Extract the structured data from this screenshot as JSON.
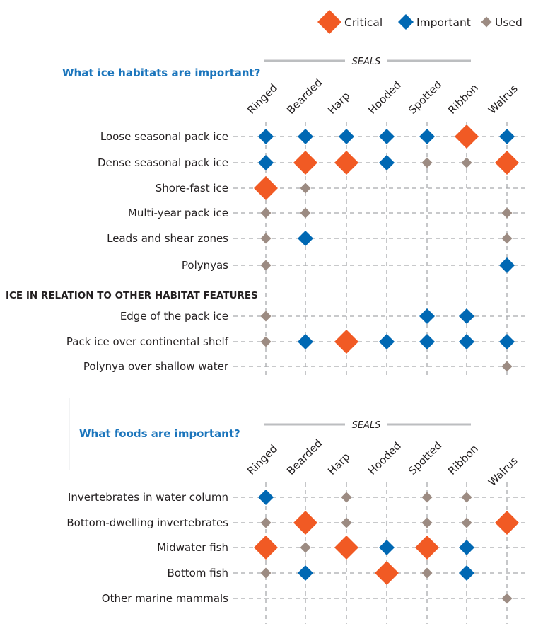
{
  "chart_data": {
    "type": "matrix",
    "colors": {
      "Critical": "#f15a24",
      "Important": "#0068b3",
      "Used": "#9c8b82",
      "heading": "#1b75bc"
    },
    "legend": {
      "placement": "top-right",
      "entries": [
        "Critical",
        "Important",
        "Used"
      ]
    },
    "codes": {
      "C": "Critical",
      "I": "Important",
      "U": "Used",
      "": "none"
    },
    "panels": [
      {
        "heading": "What ice habitats are important?",
        "group_label": "SEALS",
        "columns": [
          "Ringed",
          "Bearded",
          "Harp",
          "Hooded",
          "Spotted",
          "Ribbon",
          "Walrus"
        ],
        "sections": [
          {
            "title": "",
            "rows": [
              {
                "label": "Loose seasonal pack ice",
                "values": [
                  "I",
                  "I",
                  "I",
                  "I",
                  "I",
                  "C",
                  "I"
                ]
              },
              {
                "label": "Dense seasonal pack ice",
                "values": [
                  "I",
                  "C",
                  "C",
                  "I",
                  "U",
                  "U",
                  "C"
                ]
              },
              {
                "label": "Shore-fast ice",
                "values": [
                  "C",
                  "U",
                  "",
                  "",
                  "",
                  "",
                  ""
                ]
              },
              {
                "label": "Multi-year pack ice",
                "values": [
                  "U",
                  "U",
                  "",
                  "",
                  "",
                  "",
                  "U"
                ]
              },
              {
                "label": "Leads and shear zones",
                "values": [
                  "U",
                  "I",
                  "",
                  "",
                  "",
                  "",
                  "U"
                ]
              },
              {
                "label": "Polynyas",
                "values": [
                  "U",
                  "",
                  "",
                  "",
                  "",
                  "",
                  "I"
                ]
              }
            ]
          },
          {
            "title": "ICE IN RELATION TO OTHER HABITAT FEATURES",
            "rows": [
              {
                "label": "Edge of the pack ice",
                "values": [
                  "U",
                  "",
                  "",
                  "",
                  "I",
                  "I",
                  ""
                ]
              },
              {
                "label": "Pack ice over continental shelf",
                "values": [
                  "U",
                  "I",
                  "C",
                  "I",
                  "I",
                  "I",
                  "I"
                ]
              },
              {
                "label": "Polynya over shallow water",
                "values": [
                  "",
                  "",
                  "",
                  "",
                  "",
                  "",
                  "U"
                ]
              }
            ]
          }
        ]
      },
      {
        "heading": "What foods are important?",
        "group_label": "SEALS",
        "columns": [
          "Ringed",
          "Bearded",
          "Harp",
          "Hooded",
          "Spotted",
          "Ribbon",
          "Walrus"
        ],
        "sections": [
          {
            "title": "",
            "rows": [
              {
                "label": "Invertebrates in water column",
                "values": [
                  "I",
                  "",
                  "U",
                  "",
                  "U",
                  "U",
                  ""
                ]
              },
              {
                "label": "Bottom-dwelling invertebrates",
                "values": [
                  "U",
                  "C",
                  "U",
                  "",
                  "U",
                  "U",
                  "C"
                ]
              },
              {
                "label": "Midwater fish",
                "values": [
                  "C",
                  "U",
                  "C",
                  "I",
                  "C",
                  "I",
                  ""
                ]
              },
              {
                "label": "Bottom fish",
                "values": [
                  "U",
                  "I",
                  "",
                  "C",
                  "U",
                  "I",
                  ""
                ]
              },
              {
                "label": "Other marine mammals",
                "values": [
                  "",
                  "",
                  "",
                  "",
                  "",
                  "",
                  "U"
                ]
              }
            ]
          }
        ]
      }
    ]
  }
}
